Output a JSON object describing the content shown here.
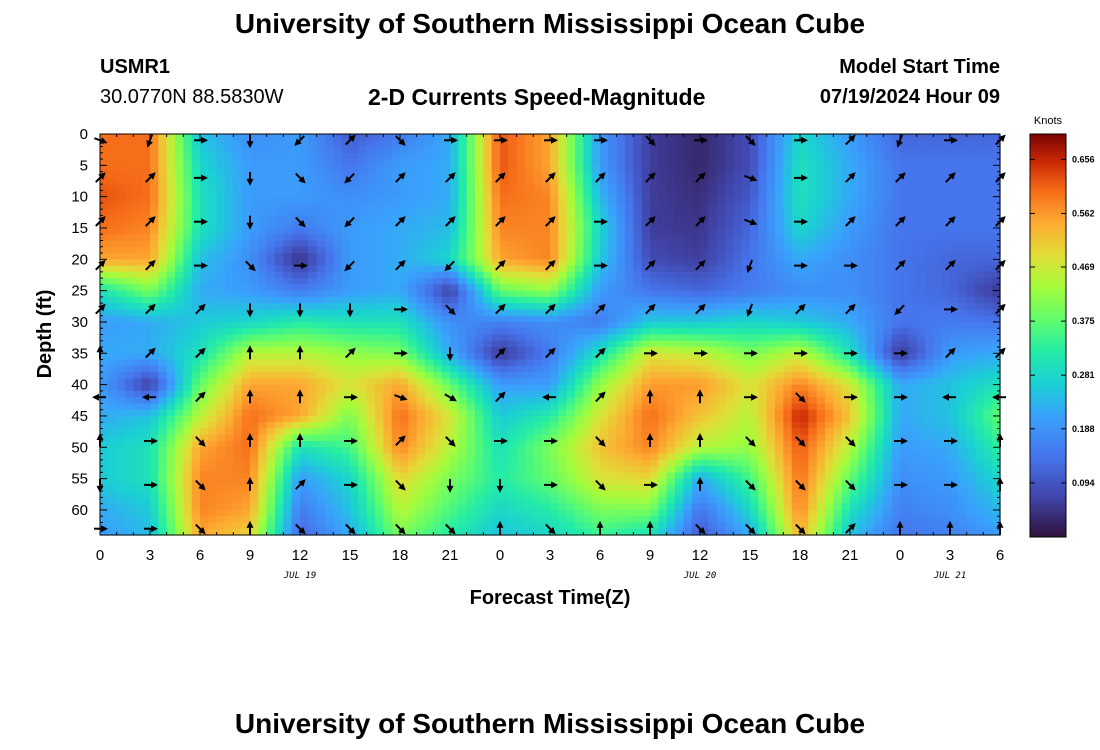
{
  "header": {
    "title": "University of Southern Mississippi Ocean Cube",
    "station_id": "USMR1",
    "station_coords": "30.0770N  88.5830W",
    "plot_title": "2-D Currents Speed-Magnitude",
    "model_start_label": "Model Start Time",
    "model_start_value": "07/19/2024 Hour 09"
  },
  "footer": {
    "title": "University of Southern Mississippi Ocean Cube"
  },
  "chart_data": {
    "type": "heatmap",
    "title": "2-D Currents Speed-Magnitude",
    "xlabel": "Forecast Time(Z)",
    "ylabel": "Depth (ft)",
    "x_hours_range": [
      0,
      54
    ],
    "x_tick_hours": [
      0,
      3,
      6,
      9,
      12,
      15,
      18,
      21,
      24,
      27,
      30,
      33,
      36,
      39,
      42,
      45,
      48,
      51,
      54
    ],
    "x_tick_labels": [
      "0",
      "3",
      "6",
      "9",
      "12",
      "15",
      "18",
      "21",
      "0",
      "3",
      "6",
      "9",
      "12",
      "15",
      "18",
      "21",
      "0",
      "3",
      "6"
    ],
    "date_labels": [
      {
        "hour": 12,
        "text": "JUL 19"
      },
      {
        "hour": 36,
        "text": "JUL 20"
      },
      {
        "hour": 51,
        "text": "JUL 21"
      }
    ],
    "y_range_ft": [
      0,
      64
    ],
    "y_tick_values": [
      0,
      5,
      10,
      15,
      20,
      25,
      30,
      35,
      40,
      45,
      50,
      55,
      60
    ],
    "colorbar": {
      "unit": "Knots",
      "range": [
        0,
        0.7
      ],
      "tick_labels": [
        "0.656",
        "0.562",
        "0.469",
        "0.375",
        "0.281",
        "0.188",
        "0.094"
      ],
      "tick_values": [
        0.656,
        0.562,
        0.469,
        0.375,
        0.281,
        0.188,
        0.094
      ]
    },
    "speed_knots_grid": {
      "depths_ft": [
        0,
        5,
        10,
        15,
        20,
        25,
        30,
        35,
        40,
        45,
        50,
        55,
        60,
        64
      ],
      "hours": [
        0,
        3,
        6,
        9,
        12,
        15,
        18,
        21,
        24,
        27,
        30,
        33,
        36,
        39,
        42,
        45,
        48,
        51,
        54
      ],
      "values": [
        [
          0.6,
          0.6,
          0.25,
          0.18,
          0.2,
          0.1,
          0.15,
          0.22,
          0.62,
          0.55,
          0.2,
          0.06,
          0.03,
          0.08,
          0.28,
          0.2,
          0.12,
          0.12,
          0.12
        ],
        [
          0.6,
          0.6,
          0.28,
          0.2,
          0.2,
          0.14,
          0.2,
          0.22,
          0.62,
          0.55,
          0.2,
          0.06,
          0.03,
          0.08,
          0.3,
          0.22,
          0.14,
          0.14,
          0.14
        ],
        [
          0.62,
          0.6,
          0.3,
          0.2,
          0.2,
          0.18,
          0.2,
          0.22,
          0.6,
          0.58,
          0.24,
          0.06,
          0.04,
          0.1,
          0.3,
          0.22,
          0.14,
          0.14,
          0.14
        ],
        [
          0.6,
          0.58,
          0.3,
          0.2,
          0.15,
          0.2,
          0.22,
          0.24,
          0.58,
          0.58,
          0.28,
          0.06,
          0.05,
          0.12,
          0.28,
          0.2,
          0.14,
          0.14,
          0.14
        ],
        [
          0.55,
          0.55,
          0.25,
          0.18,
          0.04,
          0.2,
          0.22,
          0.28,
          0.55,
          0.58,
          0.26,
          0.08,
          0.06,
          0.14,
          0.22,
          0.18,
          0.14,
          0.12,
          0.12
        ],
        [
          0.3,
          0.4,
          0.22,
          0.2,
          0.15,
          0.2,
          0.22,
          0.06,
          0.38,
          0.42,
          0.2,
          0.14,
          0.12,
          0.15,
          0.18,
          0.18,
          0.14,
          0.12,
          0.05
        ],
        [
          0.2,
          0.22,
          0.26,
          0.28,
          0.32,
          0.3,
          0.3,
          0.18,
          0.16,
          0.18,
          0.15,
          0.26,
          0.26,
          0.28,
          0.26,
          0.22,
          0.14,
          0.15,
          0.14
        ],
        [
          0.22,
          0.22,
          0.3,
          0.45,
          0.45,
          0.42,
          0.4,
          0.22,
          0.05,
          0.15,
          0.3,
          0.48,
          0.46,
          0.4,
          0.46,
          0.3,
          0.05,
          0.2,
          0.22
        ],
        [
          0.2,
          0.06,
          0.38,
          0.55,
          0.55,
          0.48,
          0.55,
          0.38,
          0.2,
          0.2,
          0.42,
          0.56,
          0.56,
          0.48,
          0.58,
          0.48,
          0.22,
          0.25,
          0.3
        ],
        [
          0.22,
          0.25,
          0.45,
          0.6,
          0.55,
          0.4,
          0.6,
          0.48,
          0.26,
          0.32,
          0.48,
          0.6,
          0.52,
          0.45,
          0.66,
          0.52,
          0.22,
          0.25,
          0.38
        ],
        [
          0.26,
          0.3,
          0.55,
          0.6,
          0.3,
          0.35,
          0.58,
          0.45,
          0.3,
          0.4,
          0.52,
          0.58,
          0.45,
          0.42,
          0.62,
          0.45,
          0.2,
          0.22,
          0.33
        ],
        [
          0.26,
          0.3,
          0.58,
          0.58,
          0.2,
          0.28,
          0.5,
          0.4,
          0.32,
          0.38,
          0.48,
          0.5,
          0.22,
          0.35,
          0.6,
          0.38,
          0.18,
          0.2,
          0.28
        ],
        [
          0.22,
          0.26,
          0.58,
          0.55,
          0.15,
          0.25,
          0.45,
          0.36,
          0.28,
          0.32,
          0.4,
          0.4,
          0.14,
          0.28,
          0.58,
          0.3,
          0.16,
          0.18,
          0.24
        ],
        [
          0.2,
          0.24,
          0.55,
          0.5,
          0.12,
          0.22,
          0.4,
          0.32,
          0.25,
          0.28,
          0.34,
          0.3,
          0.1,
          0.22,
          0.54,
          0.25,
          0.14,
          0.16,
          0.2
        ]
      ]
    },
    "current_direction_deg": {
      "depths_ft": [
        1,
        7,
        14,
        21,
        28,
        35,
        42,
        49,
        56,
        63
      ],
      "hours": [
        0,
        3,
        6,
        9,
        12,
        15,
        18,
        21,
        24,
        27,
        30,
        33,
        36,
        39,
        42,
        45,
        48,
        51,
        54
      ],
      "values": [
        [
          110,
          200,
          90,
          180,
          225,
          45,
          135,
          90,
          90,
          90,
          90,
          135,
          90,
          135,
          90,
          45,
          200,
          90,
          45
        ],
        [
          45,
          45,
          90,
          180,
          135,
          225,
          45,
          45,
          45,
          45,
          45,
          45,
          45,
          110,
          90,
          45,
          45,
          45,
          45
        ],
        [
          45,
          45,
          90,
          180,
          135,
          225,
          45,
          45,
          45,
          45,
          90,
          45,
          45,
          110,
          90,
          45,
          45,
          45,
          45
        ],
        [
          45,
          45,
          90,
          135,
          90,
          225,
          45,
          225,
          45,
          45,
          90,
          45,
          45,
          200,
          90,
          90,
          45,
          45,
          45
        ],
        [
          45,
          45,
          45,
          180,
          180,
          180,
          90,
          135,
          45,
          45,
          45,
          45,
          45,
          200,
          45,
          45,
          225,
          90,
          45
        ],
        [
          0,
          45,
          45,
          0,
          0,
          45,
          90,
          180,
          45,
          45,
          45,
          90,
          90,
          90,
          90,
          90,
          90,
          45,
          45
        ],
        [
          270,
          270,
          45,
          0,
          0,
          90,
          110,
          120,
          45,
          270,
          45,
          0,
          0,
          90,
          135,
          90,
          90,
          270,
          270
        ],
        [
          0,
          90,
          135,
          0,
          0,
          90,
          45,
          135,
          90,
          90,
          135,
          0,
          0,
          135,
          135,
          135,
          90,
          90,
          0
        ],
        [
          180,
          90,
          135,
          0,
          45,
          90,
          135,
          180,
          180,
          90,
          135,
          90,
          0,
          135,
          135,
          135,
          90,
          90,
          0
        ],
        [
          90,
          90,
          135,
          0,
          135,
          135,
          135,
          135,
          0,
          135,
          0,
          0,
          135,
          135,
          135,
          45,
          0,
          0,
          0
        ]
      ]
    }
  }
}
